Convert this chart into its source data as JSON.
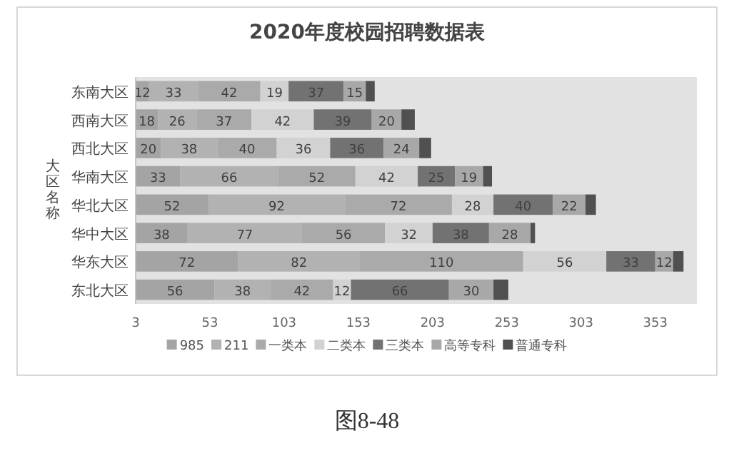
{
  "chart_data": {
    "type": "bar",
    "orientation": "horizontal",
    "stacked": true,
    "title": "2020年度校园招聘数据表",
    "ylabel": "大区名称",
    "annotations": [
      "图8-48"
    ],
    "categories": [
      "东南大区",
      "西南大区",
      "西北大区",
      "华南大区",
      "华北大区",
      "华中大区",
      "华东大区",
      "东北大区"
    ],
    "xlim": [
      3,
      381
    ],
    "xticks": [
      3,
      53,
      103,
      153,
      203,
      253,
      303,
      353
    ],
    "legend": "bottom",
    "grid": false,
    "series": [
      {
        "name": "985",
        "color": "#a4a4a4",
        "values": [
          12,
          18,
          20,
          33,
          52,
          38,
          72,
          56
        ],
        "value_labels": [
          "12",
          "18",
          "20",
          "33",
          "52",
          "38",
          "72",
          "56"
        ]
      },
      {
        "name": "211",
        "color": "#b2b2b2",
        "values": [
          33,
          26,
          38,
          66,
          92,
          77,
          82,
          38
        ],
        "value_labels": [
          "33",
          "26",
          "38",
          "66",
          "92",
          "77",
          "82",
          "38"
        ]
      },
      {
        "name": "一类本",
        "color": "#aaaaaa",
        "values": [
          42,
          37,
          40,
          52,
          72,
          56,
          110,
          42
        ],
        "value_labels": [
          "42",
          "37",
          "40",
          "52",
          "72",
          "56",
          "110",
          "42"
        ]
      },
      {
        "name": "二类本",
        "color": "#d2d2d2",
        "values": [
          19,
          42,
          36,
          42,
          28,
          32,
          56,
          12
        ],
        "value_labels": [
          "19",
          "42",
          "36",
          "42",
          "28",
          "32",
          "56",
          "12"
        ]
      },
      {
        "name": "三类本",
        "color": "#727272",
        "values": [
          37,
          39,
          36,
          25,
          40,
          38,
          33,
          66
        ],
        "value_labels": [
          "37",
          "39",
          "36",
          "25",
          "40",
          "38",
          "33",
          "66"
        ]
      },
      {
        "name": "高等专科",
        "color": "#a8a8a8",
        "values": [
          15,
          20,
          24,
          19,
          22,
          28,
          12,
          30
        ],
        "value_labels": [
          "15",
          "20",
          "24",
          "19",
          "22",
          "28",
          "12",
          "30"
        ]
      },
      {
        "name": "普通专科",
        "color": "#505050",
        "values": [
          6,
          9,
          8,
          6,
          7,
          3,
          7,
          10
        ],
        "value_labels": [
          null,
          null,
          null,
          null,
          null,
          null,
          null,
          null
        ]
      }
    ]
  }
}
